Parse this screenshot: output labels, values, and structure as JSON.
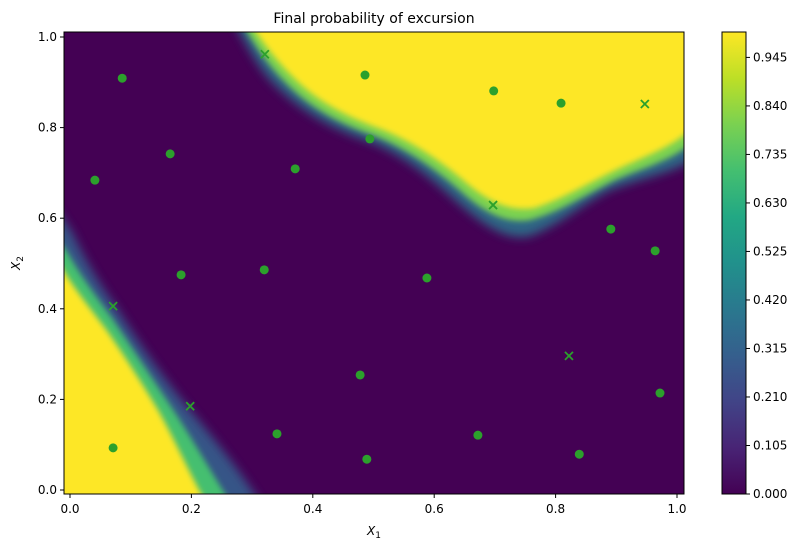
{
  "chart_data": {
    "type": "heatmap",
    "title": "Final probability of excursion",
    "xlabel": "X_1",
    "ylabel": "X_2",
    "xlim": [
      -0.01,
      1.01
    ],
    "ylim": [
      -0.01,
      1.01
    ],
    "xticks": [
      "0.0",
      "0.2",
      "0.4",
      "0.6",
      "0.8",
      "1.0"
    ],
    "yticks": [
      "0.0",
      "0.2",
      "0.4",
      "0.6",
      "0.8",
      "1.0"
    ],
    "colormap": "viridis",
    "colorbar": {
      "range": [
        0.0,
        1.0
      ],
      "ticks": [
        "0.000",
        "0.105",
        "0.210",
        "0.315",
        "0.420",
        "0.525",
        "0.630",
        "0.735",
        "0.840",
        "0.945"
      ]
    },
    "regions": [
      {
        "name": "high-probability-top-right",
        "value": 1.0,
        "description": "yellow region in upper right bounded by curve from (0.30,1.0) through (0.49,0.78), (0.70,0.62) to (1.0,0.82)"
      },
      {
        "name": "high-probability-bottom-left",
        "value": 1.0,
        "description": "yellow region in lower left bounded by line from (0.0,0.52) through (0.07,0.40) to (0.20,0.0)"
      }
    ],
    "series": [
      {
        "name": "observations",
        "marker": "circle",
        "color": "#2ca02c",
        "points": [
          [
            0.086,
            0.909
          ],
          [
            0.041,
            0.684
          ],
          [
            0.165,
            0.742
          ],
          [
            0.371,
            0.709
          ],
          [
            0.486,
            0.916
          ],
          [
            0.494,
            0.775
          ],
          [
            0.698,
            0.881
          ],
          [
            0.809,
            0.854
          ],
          [
            0.891,
            0.576
          ],
          [
            0.964,
            0.528
          ],
          [
            0.183,
            0.475
          ],
          [
            0.32,
            0.486
          ],
          [
            0.588,
            0.468
          ],
          [
            0.478,
            0.254
          ],
          [
            0.071,
            0.093
          ],
          [
            0.341,
            0.124
          ],
          [
            0.489,
            0.068
          ],
          [
            0.672,
            0.121
          ],
          [
            0.839,
            0.079
          ],
          [
            0.972,
            0.214
          ]
        ]
      },
      {
        "name": "new-samples",
        "marker": "x",
        "color": "#2ca02c",
        "points": [
          [
            0.321,
            0.962
          ],
          [
            0.947,
            0.852
          ],
          [
            0.697,
            0.629
          ],
          [
            0.071,
            0.406
          ],
          [
            0.198,
            0.185
          ],
          [
            0.822,
            0.296
          ]
        ]
      }
    ],
    "colors": {
      "low": "#440154",
      "high": "#fde725",
      "marker": "#2ca02c"
    }
  },
  "labels": {
    "title": "Final probability of excursion",
    "xlabel_main": "X",
    "xlabel_sub": "1",
    "ylabel_main": "X",
    "ylabel_sub": "2"
  }
}
